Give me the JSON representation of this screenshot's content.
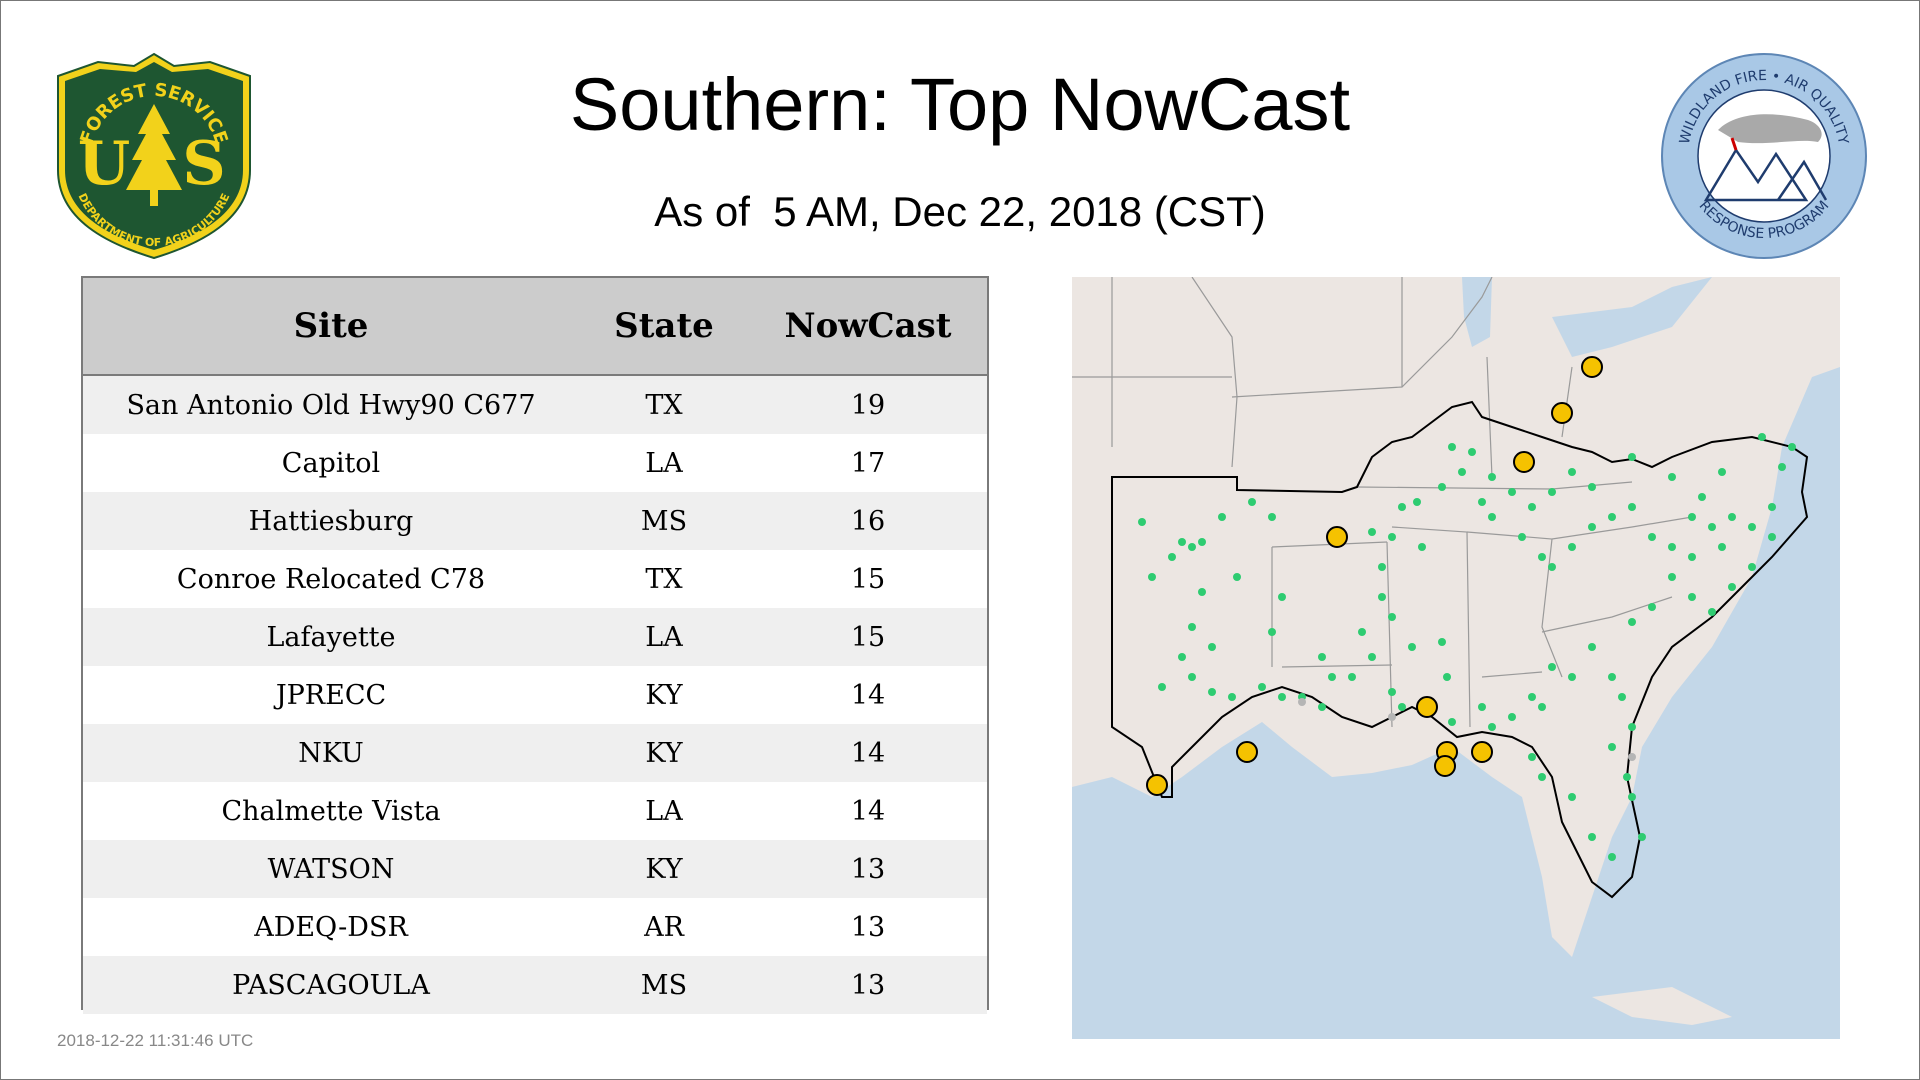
{
  "header": {
    "title": "Southern: Top NowCast",
    "subtitle": "As of  5 AM, Dec 22, 2018 (CST)"
  },
  "logos": {
    "left": {
      "name": "forest-service-shield",
      "text_top": "FOREST SERVICE",
      "letters": "U S",
      "text_bottom": "DEPARTMENT OF AGRICULTURE",
      "colors": {
        "fill": "#1e5631",
        "accent": "#f2d21b"
      }
    },
    "right": {
      "name": "wildland-fire-air-quality-seal",
      "text_top": "WILDLAND FIRE • AIR QUALITY",
      "text_bottom": "RESPONSE PROGRAM",
      "colors": {
        "ring": "#a9c8e6",
        "text": "#1f3c6e"
      }
    }
  },
  "table": {
    "headers": [
      "Site",
      "State",
      "NowCast"
    ],
    "rows": [
      {
        "site": "San Antonio Old Hwy90 C677",
        "state": "TX",
        "nowcast": "19"
      },
      {
        "site": "Capitol",
        "state": "LA",
        "nowcast": "17"
      },
      {
        "site": "Hattiesburg",
        "state": "MS",
        "nowcast": "16"
      },
      {
        "site": "Conroe Relocated C78",
        "state": "TX",
        "nowcast": "15"
      },
      {
        "site": "Lafayette",
        "state": "LA",
        "nowcast": "15"
      },
      {
        "site": "JPRECC",
        "state": "KY",
        "nowcast": "14"
      },
      {
        "site": "NKU",
        "state": "KY",
        "nowcast": "14"
      },
      {
        "site": "Chalmette Vista",
        "state": "LA",
        "nowcast": "14"
      },
      {
        "site": "WATSON",
        "state": "KY",
        "nowcast": "13"
      },
      {
        "site": "ADEQ-DSR",
        "state": "AR",
        "nowcast": "13"
      },
      {
        "site": "PASCAGOULA",
        "state": "MS",
        "nowcast": "13"
      }
    ]
  },
  "footer": {
    "timestamp": "2018-12-22 11:31:46 UTC"
  },
  "map": {
    "colors": {
      "land": "#ece6e2",
      "water": "#c3d7e8",
      "border": "#9a9a9a",
      "region_outline": "#000000",
      "site_good": "#2ecc71",
      "site_top": "#f5c200",
      "site_missing": "#b5b5b5"
    }
  }
}
